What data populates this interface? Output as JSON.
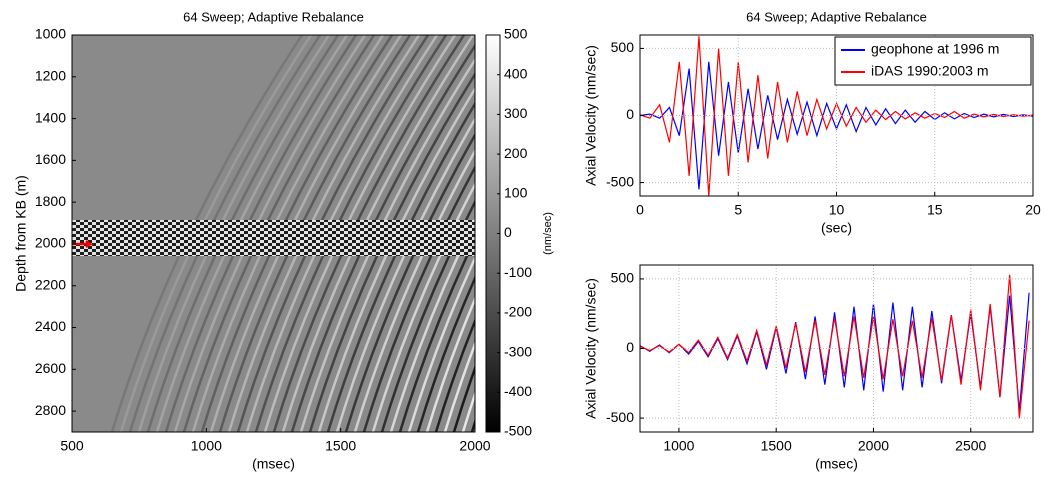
{
  "chart_data": [
    {
      "type": "image",
      "title": "64 Sweep; Adaptive Rebalance",
      "x_label": "(msec)",
      "y_label": "Depth from KB (m)",
      "xlim": [
        500,
        2000
      ],
      "xticks": [
        500,
        1000,
        1500,
        2000
      ],
      "ylim": [
        2900,
        1000
      ],
      "yticks": [
        1000,
        1200,
        1400,
        1600,
        1800,
        2000,
        2200,
        2400,
        2600,
        2800
      ],
      "colorbar_lim": [
        -500,
        500
      ],
      "colorbar_ticks": [
        500,
        400,
        300,
        200,
        100,
        0,
        -100,
        -200,
        -300,
        -400,
        -500
      ],
      "colorbar_label": "(nm/sec)"
    },
    {
      "type": "line",
      "title": "64 Sweep; Adaptive Rebalance",
      "x_label": "(sec)",
      "y_label": "Axial Velocity (nm/sec)",
      "xlim": [
        0,
        20
      ],
      "xticks": [
        0,
        5,
        10,
        15,
        20
      ],
      "ylim": [
        -600,
        600
      ],
      "yticks": [
        -500,
        0,
        500
      ],
      "grid": true,
      "legend": "upper-right",
      "x": [
        0,
        0.5,
        1,
        1.5,
        2,
        2.5,
        3,
        3.5,
        4,
        4.5,
        5,
        5.5,
        6,
        6.5,
        7,
        7.5,
        8,
        8.5,
        9,
        9.5,
        10,
        10.5,
        11,
        11.5,
        12,
        12.5,
        13,
        13.5,
        14,
        14.5,
        15,
        15.5,
        16,
        16.5,
        17,
        17.5,
        18,
        18.5,
        19,
        19.5,
        20
      ],
      "series": [
        {
          "name": "geophone at 1996 m",
          "color": "#0000ff",
          "values": [
            0,
            10,
            -20,
            60,
            -150,
            350,
            -550,
            400,
            -300,
            250,
            -280,
            200,
            -250,
            150,
            -180,
            120,
            -140,
            100,
            -150,
            90,
            -100,
            80,
            -120,
            60,
            -70,
            50,
            -60,
            40,
            -50,
            30,
            -30,
            20,
            -25,
            15,
            -15,
            10,
            -10,
            8,
            -8,
            5,
            -5
          ]
        },
        {
          "name": "iDAS 1990:2003 m",
          "color": "#ff0000",
          "values": [
            5,
            -20,
            80,
            -200,
            400,
            -450,
            590,
            -600,
            500,
            -450,
            400,
            -350,
            300,
            -320,
            250,
            -200,
            180,
            -150,
            120,
            -100,
            90,
            -80,
            60,
            -50,
            40,
            -30,
            30,
            -25,
            20,
            -20,
            15,
            -15,
            30,
            -20,
            10,
            -10,
            8,
            -8,
            6,
            -5,
            3
          ]
        }
      ]
    },
    {
      "type": "line",
      "x_label": "(msec)",
      "y_label": "Axial Velocity (nm/sec)",
      "xlim": [
        800,
        2820
      ],
      "xticks": [
        1000,
        1500,
        2000,
        2500
      ],
      "ylim": [
        -600,
        600
      ],
      "yticks": [
        -500,
        0,
        500
      ],
      "grid": true,
      "x": [
        800,
        850,
        900,
        950,
        1000,
        1050,
        1100,
        1150,
        1200,
        1250,
        1300,
        1350,
        1400,
        1450,
        1500,
        1550,
        1600,
        1650,
        1700,
        1750,
        1800,
        1850,
        1900,
        1950,
        2000,
        2050,
        2100,
        2150,
        2200,
        2250,
        2300,
        2350,
        2400,
        2450,
        2500,
        2550,
        2600,
        2650,
        2700,
        2750,
        2800
      ],
      "series": [
        {
          "color": "#0000ff",
          "values": [
            20,
            -20,
            25,
            -30,
            30,
            -40,
            50,
            -60,
            70,
            -80,
            90,
            -110,
            120,
            -150,
            150,
            -180,
            190,
            -220,
            230,
            -260,
            260,
            -280,
            300,
            -300,
            320,
            -310,
            330,
            -300,
            300,
            -280,
            270,
            -250,
            240,
            -230,
            250,
            -280,
            300,
            -350,
            380,
            -450,
            400
          ]
        },
        {
          "color": "#ff0000",
          "values": [
            15,
            -15,
            20,
            -25,
            30,
            -30,
            60,
            -50,
            80,
            -70,
            100,
            -90,
            130,
            -120,
            160,
            -140,
            180,
            -170,
            200,
            -190,
            220,
            -200,
            230,
            -210,
            230,
            -220,
            210,
            -200,
            200,
            -210,
            220,
            -230,
            240,
            -260,
            280,
            -300,
            320,
            -350,
            530,
            -500,
            200
          ]
        }
      ]
    }
  ]
}
